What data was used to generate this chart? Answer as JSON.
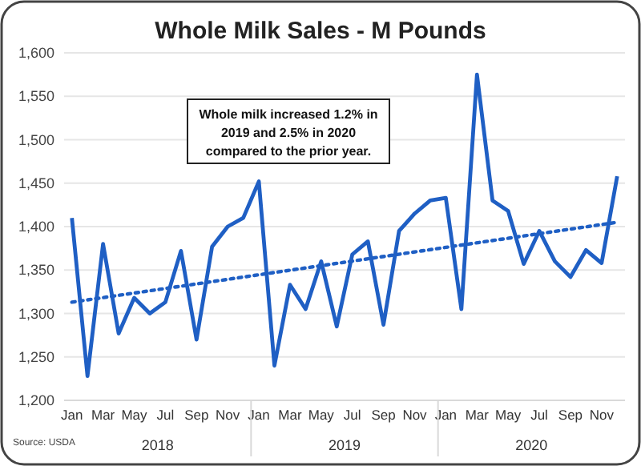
{
  "chart_data": {
    "type": "line",
    "title": "Whole Milk Sales - M Pounds",
    "categories": [
      "Jan",
      null,
      "Mar",
      null,
      "May",
      null,
      "Jul",
      null,
      "Sep",
      null,
      "Nov",
      null,
      "Jan",
      null,
      "Mar",
      null,
      "May",
      null,
      "Jul",
      null,
      "Sep",
      null,
      "Nov",
      null,
      "Jan",
      null,
      "Mar",
      null,
      "May",
      null,
      "Jul",
      null,
      "Sep",
      null,
      "Nov",
      null
    ],
    "series": [
      {
        "color": "#1f5fc4",
        "values": [
          1410,
          1228,
          1380,
          1277,
          1318,
          1300,
          1313,
          1372,
          1270,
          1377,
          1400,
          1410,
          1452,
          1240,
          1333,
          1305,
          1360,
          1285,
          1368,
          1383,
          1287,
          1395,
          1415,
          1430,
          1433,
          1305,
          1575,
          1430,
          1418,
          1357,
          1395,
          1360,
          1342,
          1373,
          1358,
          1458
        ]
      },
      {
        "color": "#1f5fc4",
        "line_style": "dotted",
        "values": [
          1313,
          null,
          null,
          null,
          null,
          null,
          null,
          null,
          null,
          null,
          null,
          null,
          null,
          null,
          null,
          null,
          null,
          null,
          null,
          null,
          null,
          null,
          null,
          null,
          null,
          null,
          null,
          null,
          null,
          null,
          null,
          null,
          null,
          null,
          null,
          1405
        ]
      }
    ],
    "ylim": [
      1200,
      1600
    ],
    "yticks": [
      {
        "value": 1200,
        "label": "1,200"
      },
      {
        "value": 1250,
        "label": "1,250"
      },
      {
        "value": 1300,
        "label": "1,300"
      },
      {
        "value": 1350,
        "label": "1,350"
      },
      {
        "value": 1400,
        "label": "1,400"
      },
      {
        "value": 1450,
        "label": "1,450"
      },
      {
        "value": 1500,
        "label": "1,500"
      },
      {
        "value": 1550,
        "label": "1,550"
      },
      {
        "value": 1600,
        "label": "1,600"
      }
    ],
    "grid": "y",
    "line_style": "solid",
    "annotations": [
      "Whole milk increased 1.2% in 2019 and 2.5% in 2020 compared to the prior year.",
      "2018",
      "2019",
      "2020",
      "Source: USDA"
    ]
  }
}
